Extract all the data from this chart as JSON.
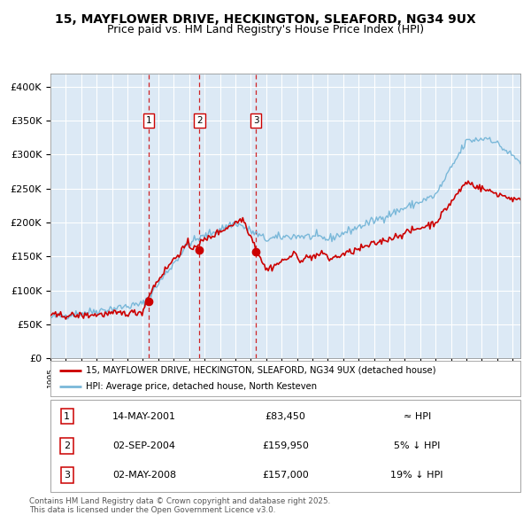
{
  "title_line1": "15, MAYFLOWER DRIVE, HECKINGTON, SLEAFORD, NG34 9UX",
  "title_line2": "Price paid vs. HM Land Registry's House Price Index (HPI)",
  "background_color": "#dce9f5",
  "fig_bg_color": "#ffffff",
  "ylim": [
    0,
    420000
  ],
  "yticks": [
    0,
    50000,
    100000,
    150000,
    200000,
    250000,
    300000,
    350000,
    400000
  ],
  "ytick_labels": [
    "£0",
    "£50K",
    "£100K",
    "£150K",
    "£200K",
    "£250K",
    "£300K",
    "£350K",
    "£400K"
  ],
  "hpi_color": "#7ab8d9",
  "price_color": "#cc0000",
  "grid_color": "#ffffff",
  "purchases": [
    {
      "date_num": 2001.37,
      "price": 83450,
      "label": "1"
    },
    {
      "date_num": 2004.67,
      "price": 159950,
      "label": "2"
    },
    {
      "date_num": 2008.33,
      "price": 157000,
      "label": "3"
    }
  ],
  "table_data": [
    {
      "num": "1",
      "date": "14-MAY-2001",
      "price": "£83,450",
      "relation": "≈ HPI"
    },
    {
      "num": "2",
      "date": "02-SEP-2004",
      "price": "£159,950",
      "relation": "5% ↓ HPI"
    },
    {
      "num": "3",
      "date": "02-MAY-2008",
      "price": "£157,000",
      "relation": "19% ↓ HPI"
    }
  ],
  "legend_line1": "15, MAYFLOWER DRIVE, HECKINGTON, SLEAFORD, NG34 9UX (detached house)",
  "legend_line2": "HPI: Average price, detached house, North Kesteven",
  "footer": "Contains HM Land Registry data © Crown copyright and database right 2025.\nThis data is licensed under the Open Government Licence v3.0.",
  "xmin": 1995,
  "xmax": 2025.5
}
